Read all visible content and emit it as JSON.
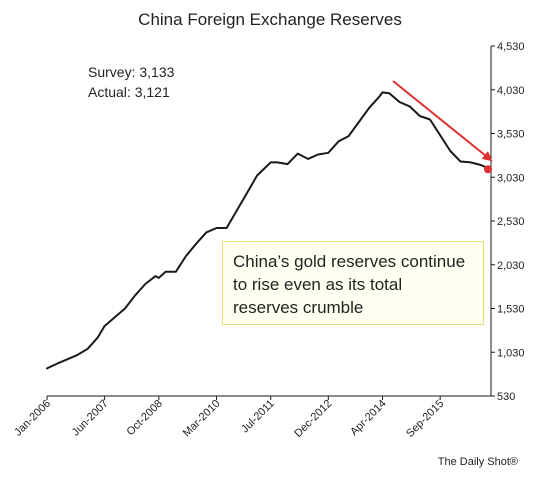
{
  "chart_data": {
    "type": "line",
    "title": "China Foreign Exchange Reserves",
    "y_ticks": [
      "4,530",
      "4,030",
      "3,530",
      "3,030",
      "2,530",
      "2,030",
      "1,530",
      "1,030",
      "530"
    ],
    "y_tick_values": [
      4530,
      4030,
      3530,
      3030,
      2530,
      2030,
      1530,
      1030,
      530
    ],
    "ylim": [
      530,
      4530
    ],
    "x_ticks": [
      "Jan-2006",
      "Jun-2007",
      "Oct-2008",
      "Mar-2010",
      "Jul-2011",
      "Dec-2012",
      "Apr-2014",
      "Sep-2015"
    ],
    "x_tick_dates": [
      "2006-01",
      "2007-06",
      "2008-10",
      "2010-03",
      "2011-07",
      "2012-12",
      "2014-04",
      "2015-09"
    ],
    "xlim": [
      "2006-01",
      "2016-12"
    ],
    "grid": false,
    "series": [
      {
        "x": [
          "2006-01",
          "2006-04",
          "2006-07",
          "2006-10",
          "2007-01",
          "2007-04",
          "2007-06",
          "2007-09",
          "2007-12",
          "2008-03",
          "2008-06",
          "2008-09",
          "2008-10",
          "2008-12",
          "2009-03",
          "2009-06",
          "2009-09",
          "2009-12",
          "2010-03",
          "2010-06",
          "2010-09",
          "2010-12",
          "2011-03",
          "2011-07",
          "2011-09",
          "2011-12",
          "2012-03",
          "2012-06",
          "2012-09",
          "2012-12",
          "2013-03",
          "2013-06",
          "2013-09",
          "2013-12",
          "2014-03",
          "2014-04",
          "2014-06",
          "2014-09",
          "2014-12",
          "2015-03",
          "2015-06",
          "2015-09",
          "2015-12",
          "2016-03",
          "2016-06",
          "2016-09",
          "2016-12"
        ],
        "values": [
          845,
          900,
          950,
          1000,
          1070,
          1200,
          1330,
          1430,
          1530,
          1680,
          1810,
          1900,
          1880,
          1950,
          1950,
          2130,
          2270,
          2400,
          2450,
          2450,
          2650,
          2850,
          3050,
          3200,
          3200,
          3180,
          3300,
          3240,
          3290,
          3310,
          3440,
          3500,
          3660,
          3820,
          3950,
          4000,
          3990,
          3890,
          3840,
          3730,
          3690,
          3510,
          3330,
          3210,
          3200,
          3170,
          3121
        ]
      }
    ],
    "annotations": {
      "survey": "Survey: 3,133",
      "actual": "Actual:  3,121",
      "note_lines": [
        "China’s gold reserves continue",
        "to rise even as its total",
        "reserves crumble"
      ],
      "credit": "The Daily Shot®"
    },
    "colors": {
      "line": "#1a1a1a",
      "arrow": "#e03030",
      "marker": "#e03030",
      "note_border": "#e8e27a",
      "note_fill": "#fffff2"
    }
  }
}
